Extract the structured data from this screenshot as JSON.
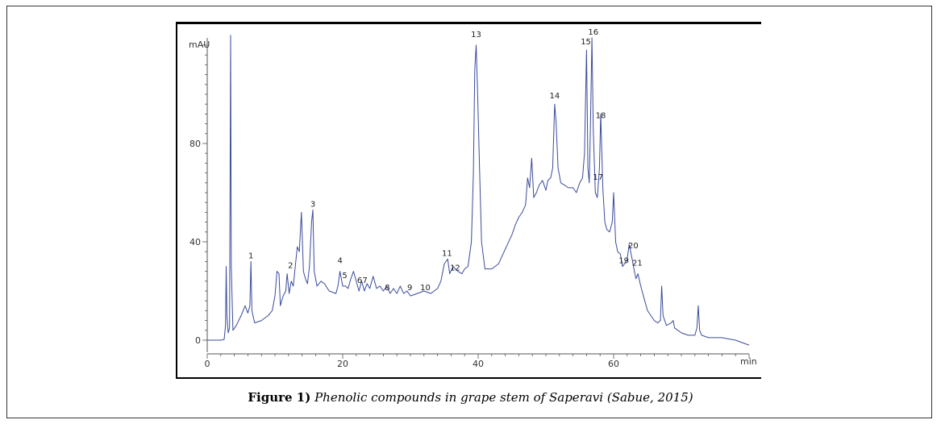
{
  "chart_data": {
    "type": "line",
    "ylabel": "mAU",
    "xlabel": "min",
    "xlim": [
      0,
      80
    ],
    "ylim": [
      -4,
      124
    ],
    "x_ticks": [
      0,
      20,
      40,
      60
    ],
    "y_ticks": [
      0,
      40,
      80
    ],
    "line_color": "#3a4a9c",
    "series": [
      {
        "values": [
          [
            0,
            0
          ],
          [
            1,
            0
          ],
          [
            2,
            0
          ],
          [
            2.5,
            0.3
          ],
          [
            2.7,
            6
          ],
          [
            2.8,
            30
          ],
          [
            2.9,
            10
          ],
          [
            3.1,
            3
          ],
          [
            3.3,
            5
          ],
          [
            3.45,
            124
          ],
          [
            3.55,
            30
          ],
          [
            3.8,
            4
          ],
          [
            4.3,
            6
          ],
          [
            5,
            10
          ],
          [
            5.6,
            14
          ],
          [
            6.0,
            11
          ],
          [
            6.3,
            14
          ],
          [
            6.45,
            32
          ],
          [
            6.6,
            12
          ],
          [
            7,
            7
          ],
          [
            8,
            8
          ],
          [
            9,
            10
          ],
          [
            9.6,
            12
          ],
          [
            10,
            18
          ],
          [
            10.3,
            28
          ],
          [
            10.6,
            27
          ],
          [
            10.8,
            14
          ],
          [
            11.2,
            18
          ],
          [
            11.6,
            20
          ],
          [
            11.8,
            27
          ],
          [
            12.1,
            19
          ],
          [
            12.4,
            24
          ],
          [
            12.7,
            22
          ],
          [
            13,
            30
          ],
          [
            13.3,
            38
          ],
          [
            13.6,
            36
          ],
          [
            13.9,
            52
          ],
          [
            14.2,
            28
          ],
          [
            14.5,
            25
          ],
          [
            14.8,
            23
          ],
          [
            15.1,
            30
          ],
          [
            15.4,
            48
          ],
          [
            15.6,
            53
          ],
          [
            15.8,
            28
          ],
          [
            16.2,
            22
          ],
          [
            16.8,
            24
          ],
          [
            17.3,
            23
          ],
          [
            18,
            20
          ],
          [
            19,
            19
          ],
          [
            19.3,
            22
          ],
          [
            19.6,
            28
          ],
          [
            20,
            22
          ],
          [
            20.4,
            22
          ],
          [
            20.8,
            21
          ],
          [
            21.2,
            25
          ],
          [
            21.6,
            28
          ],
          [
            22,
            24
          ],
          [
            22.4,
            20
          ],
          [
            22.8,
            24
          ],
          [
            23.2,
            20
          ],
          [
            23.6,
            23
          ],
          [
            24,
            21
          ],
          [
            24.5,
            26
          ],
          [
            25,
            21
          ],
          [
            25.5,
            22
          ],
          [
            26,
            20
          ],
          [
            26.5,
            22
          ],
          [
            27,
            19
          ],
          [
            27.5,
            21
          ],
          [
            28,
            19
          ],
          [
            28.5,
            22
          ],
          [
            29,
            19
          ],
          [
            29.5,
            20
          ],
          [
            30,
            18
          ],
          [
            31,
            19
          ],
          [
            32,
            20
          ],
          [
            33,
            19
          ],
          [
            34,
            21
          ],
          [
            34.5,
            24
          ],
          [
            35,
            31
          ],
          [
            35.5,
            33
          ],
          [
            35.8,
            27
          ],
          [
            36.3,
            30
          ],
          [
            37,
            28
          ],
          [
            37.6,
            27
          ],
          [
            38,
            29
          ],
          [
            38.5,
            30
          ],
          [
            39,
            40
          ],
          [
            39.3,
            68
          ],
          [
            39.5,
            110
          ],
          [
            39.7,
            120
          ],
          [
            39.9,
            102
          ],
          [
            40.2,
            70
          ],
          [
            40.5,
            40
          ],
          [
            41,
            29
          ],
          [
            42,
            29
          ],
          [
            43,
            31
          ],
          [
            44,
            37
          ],
          [
            45,
            43
          ],
          [
            45.5,
            47
          ],
          [
            46,
            50
          ],
          [
            46.5,
            52
          ],
          [
            47,
            55
          ],
          [
            47.3,
            66
          ],
          [
            47.6,
            62
          ],
          [
            47.9,
            74
          ],
          [
            48.2,
            58
          ],
          [
            48.6,
            60
          ],
          [
            49,
            63
          ],
          [
            49.5,
            65
          ],
          [
            50,
            61
          ],
          [
            50.3,
            65
          ],
          [
            50.7,
            66
          ],
          [
            51,
            70
          ],
          [
            51.3,
            96
          ],
          [
            51.5,
            89
          ],
          [
            51.8,
            70
          ],
          [
            52.2,
            64
          ],
          [
            52.8,
            63
          ],
          [
            53.3,
            62
          ],
          [
            54,
            62
          ],
          [
            54.5,
            60
          ],
          [
            55,
            64
          ],
          [
            55.4,
            66
          ],
          [
            55.7,
            76
          ],
          [
            56,
            118
          ],
          [
            56.2,
            70
          ],
          [
            56.4,
            64
          ],
          [
            56.6,
            90
          ],
          [
            56.8,
            123
          ],
          [
            57,
            85
          ],
          [
            57.3,
            60
          ],
          [
            57.6,
            58
          ],
          [
            57.9,
            70
          ],
          [
            58.1,
            92
          ],
          [
            58.4,
            62
          ],
          [
            58.7,
            48
          ],
          [
            59,
            45
          ],
          [
            59.4,
            44
          ],
          [
            59.8,
            48
          ],
          [
            60,
            60
          ],
          [
            60.3,
            40
          ],
          [
            60.6,
            36
          ],
          [
            61,
            35
          ],
          [
            61.3,
            30
          ],
          [
            61.6,
            31
          ],
          [
            62,
            33
          ],
          [
            62.3,
            39
          ],
          [
            62.6,
            35
          ],
          [
            63,
            29
          ],
          [
            63.3,
            25
          ],
          [
            63.6,
            27
          ],
          [
            64,
            22
          ],
          [
            64.5,
            17
          ],
          [
            65,
            12
          ],
          [
            65.5,
            10
          ],
          [
            66,
            8
          ],
          [
            66.5,
            7
          ],
          [
            66.9,
            8
          ],
          [
            67.1,
            22
          ],
          [
            67.3,
            10
          ],
          [
            67.8,
            6
          ],
          [
            68.5,
            7
          ],
          [
            68.8,
            8
          ],
          [
            69,
            5
          ],
          [
            70,
            3
          ],
          [
            71,
            2
          ],
          [
            72,
            2
          ],
          [
            72.3,
            5
          ],
          [
            72.5,
            14
          ],
          [
            72.7,
            4
          ],
          [
            73,
            2
          ],
          [
            74,
            1
          ],
          [
            75,
            1
          ],
          [
            76,
            1
          ],
          [
            77,
            0.5
          ],
          [
            78,
            0
          ],
          [
            79,
            -1
          ],
          [
            80,
            -2
          ]
        ]
      }
    ],
    "peak_labels": [
      {
        "label": "1",
        "x": 6.45,
        "y": 32
      },
      {
        "label": "2",
        "x": 12.3,
        "y": 28
      },
      {
        "label": "3",
        "x": 15.6,
        "y": 53
      },
      {
        "label": "4",
        "x": 19.6,
        "y": 30
      },
      {
        "label": "5",
        "x": 20.3,
        "y": 24
      },
      {
        "label": "6",
        "x": 22.5,
        "y": 22
      },
      {
        "label": "7",
        "x": 23.3,
        "y": 22
      },
      {
        "label": "8",
        "x": 26.6,
        "y": 19
      },
      {
        "label": "9",
        "x": 29.9,
        "y": 19
      },
      {
        "label": "10",
        "x": 32.2,
        "y": 19
      },
      {
        "label": "11",
        "x": 35.4,
        "y": 33
      },
      {
        "label": "12",
        "x": 36.6,
        "y": 27
      },
      {
        "label": "13",
        "x": 39.7,
        "y": 122
      },
      {
        "label": "14",
        "x": 51.3,
        "y": 97
      },
      {
        "label": "15",
        "x": 55.9,
        "y": 119
      },
      {
        "label": "16",
        "x": 57.0,
        "y": 123
      },
      {
        "label": "17",
        "x": 57.7,
        "y": 64
      },
      {
        "label": "18",
        "x": 58.1,
        "y": 89
      },
      {
        "label": "19",
        "x": 61.5,
        "y": 30
      },
      {
        "label": "20",
        "x": 62.9,
        "y": 36
      },
      {
        "label": "21",
        "x": 63.5,
        "y": 29
      }
    ]
  },
  "caption": {
    "bold": "Figure 1)",
    "italic": "Phenolic compounds in grape stem of Saperavi (Sabue, 2015)"
  }
}
